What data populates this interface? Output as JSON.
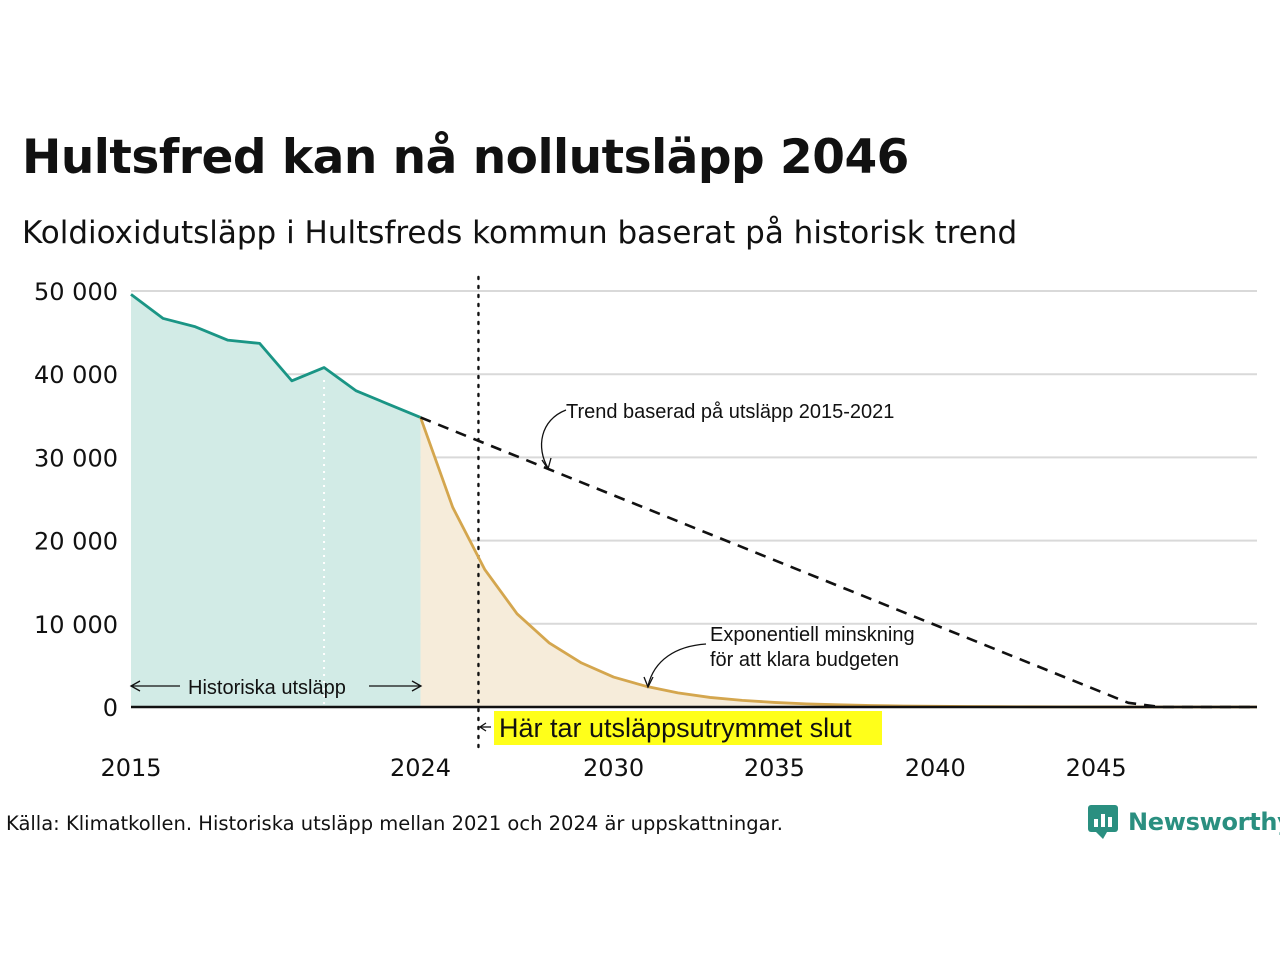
{
  "title": "Hultsfred kan nå nollutsläpp 2046",
  "subtitle": "Koldioxidutsläpp i Hultsfreds kommun baserat på historisk trend",
  "source": "Källa: Klimatkollen. Historiska utsläpp mellan 2021 och 2024 är uppskattningar.",
  "brand": "Newsworthy",
  "chart_data": {
    "type": "area",
    "xlim": [
      2015,
      2050
    ],
    "ylim": [
      0,
      50000
    ],
    "x_ticks": [
      2015,
      2024,
      2030,
      2035,
      2040,
      2045
    ],
    "y_ticks": [
      {
        "value": 0,
        "label": "0"
      },
      {
        "value": 10000,
        "label": "10 000"
      },
      {
        "value": 20000,
        "label": "20 000"
      },
      {
        "value": 30000,
        "label": "30 000"
      },
      {
        "value": 40000,
        "label": "40 000"
      },
      {
        "value": 50000,
        "label": "50 000"
      }
    ],
    "grid": true,
    "series": [
      {
        "color": "#1a9585",
        "fill": "#d2ebe6",
        "x": [
          2015,
          2016,
          2017,
          2018,
          2019,
          2020,
          2021,
          2022,
          2023,
          2024
        ],
        "values": [
          49600,
          46700,
          45700,
          44100,
          43700,
          39200,
          40800,
          38000,
          36400,
          34800
        ]
      },
      {
        "color": "#d4a64e",
        "fill": "#f6ecda",
        "x": [
          2024,
          2025,
          2026,
          2027,
          2028,
          2029,
          2030,
          2031,
          2032,
          2033,
          2034,
          2035,
          2036,
          2037,
          2038,
          2039,
          2040,
          2041,
          2042,
          2043,
          2044,
          2045,
          2046,
          2047,
          2048,
          2049,
          2050
        ],
        "values": [
          34800,
          24000,
          16500,
          11200,
          7700,
          5300,
          3600,
          2500,
          1700,
          1150,
          800,
          550,
          380,
          260,
          180,
          120,
          80,
          55,
          40,
          25,
          15,
          10,
          5,
          0,
          0,
          0,
          0
        ]
      },
      {
        "style": "dashed",
        "color": "#111111",
        "x": [
          2024,
          2046,
          2047,
          2050
        ],
        "values": [
          34800,
          500,
          0,
          0
        ]
      }
    ],
    "markers": [
      {
        "x": 2021,
        "style": "dotted-white"
      },
      {
        "x": 2025.8,
        "style": "dotted-black"
      }
    ],
    "annotations": {
      "trend": "Trend baserad på utsläpp 2015-2021",
      "exp_line1": "Exponentiell minskning",
      "exp_line2": "för att klara budgeten",
      "historic": "Historiska utsläpp",
      "budget_end": "Här tar utsläppsutrymmet slut",
      "budget_end_bg": "#ffff1a"
    }
  }
}
